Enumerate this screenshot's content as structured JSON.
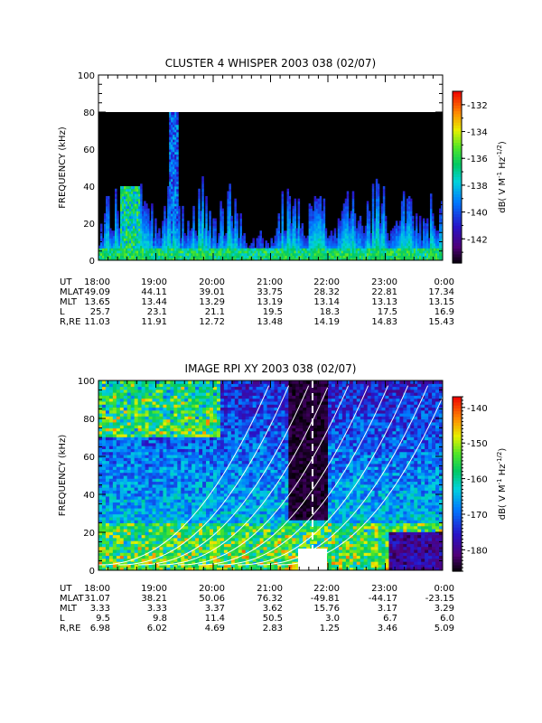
{
  "chart_data": [
    {
      "type": "heatmap",
      "title": "CLUSTER 4 WHISPER 2003 038 (02/07)",
      "ylabel": "FREQUENCY (kHz)",
      "ylim": [
        0,
        100
      ],
      "yticks": [
        "0",
        "20",
        "40",
        "60",
        "80",
        "100"
      ],
      "data_top_khz": 80,
      "colorbar": {
        "label": "dB( V M⁻¹ Hz⁻¹ᐟ²)",
        "label_parts": [
          "dB( V M",
          "-1",
          " Hz",
          "-1/2",
          ")"
        ],
        "ticks": [
          "-132",
          "-134",
          "-136",
          "-138",
          "-140",
          "-142"
        ],
        "range": [
          -143.8,
          -131
        ]
      },
      "ephemeris": {
        "row_labels": [
          "UT",
          "MLAT",
          "MLT",
          "L",
          "R,RE"
        ],
        "columns": [
          [
            "18:00",
            "49.09",
            "13.65",
            "25.7",
            "11.03"
          ],
          [
            "19:00",
            "44.11",
            "13.44",
            "23.1",
            "11.91"
          ],
          [
            "20:00",
            "39.01",
            "13.29",
            "21.1",
            "12.72"
          ],
          [
            "21:00",
            "33.75",
            "13.19",
            "19.5",
            "13.48"
          ],
          [
            "22:00",
            "28.32",
            "13.14",
            "18.3",
            "14.19"
          ],
          [
            "23:00",
            "22.81",
            "13.13",
            "17.5",
            "14.83"
          ],
          [
            "0:00",
            "17.34",
            "13.15",
            "16.9",
            "15.43"
          ]
        ]
      }
    },
    {
      "type": "heatmap",
      "title": "IMAGE RPI XY 2003 038 (02/07)",
      "ylabel": "FREQUENCY (kHz)",
      "ylim": [
        0,
        100
      ],
      "yticks": [
        "0",
        "20",
        "40",
        "60",
        "80",
        "100"
      ],
      "colorbar": {
        "label": "dB( V M⁻¹ Hz⁻¹ᐟ²)",
        "label_parts": [
          "dB( V M",
          "-1",
          " Hz",
          "-1/2",
          ")"
        ],
        "ticks": [
          "-140",
          "-150",
          "-160",
          "-170",
          "-180"
        ],
        "range": [
          -186,
          -137
        ]
      },
      "ephemeris": {
        "row_labels": [
          "UT",
          "MLAT",
          "MLT",
          "L",
          "R,RE"
        ],
        "columns": [
          [
            "18:00",
            "31.07",
            "3.33",
            "9.5",
            "6.98"
          ],
          [
            "19:00",
            "38.21",
            "3.33",
            "9.8",
            "6.02"
          ],
          [
            "20:00",
            "50.06",
            "3.37",
            "11.4",
            "4.69"
          ],
          [
            "21:00",
            "76.32",
            "3.62",
            "50.5",
            "2.83"
          ],
          [
            "22:00",
            "-49.81",
            "15.76",
            "3.0",
            "1.25"
          ],
          [
            "23:00",
            "-44.17",
            "3.17",
            "6.7",
            "3.46"
          ],
          [
            "0:00",
            "-23.15",
            "3.29",
            "6.0",
            "5.09"
          ]
        ]
      }
    }
  ]
}
